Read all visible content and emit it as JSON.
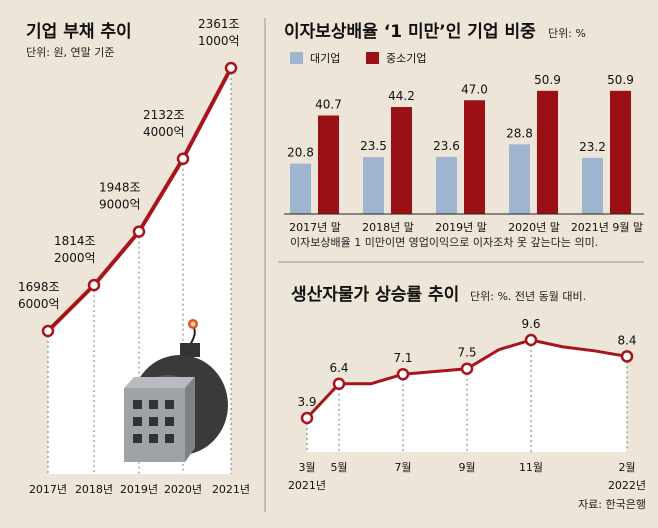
{
  "source": "자료: 한국은행",
  "colors": {
    "line": "#a8141c",
    "large": "#9fb4cf",
    "sme": "#9b1014",
    "bg": "#ece5d8"
  },
  "chart_data": [
    {
      "type": "line",
      "title": "기업 부채 추이",
      "subtitle": "단위: 원, 연말 기준",
      "categories": [
        "2017년",
        "2018년",
        "2019년",
        "2020년",
        "2021년"
      ],
      "values": [
        1698.6,
        1814.2,
        1948.9,
        2132.4,
        2361.1
      ],
      "labels": [
        {
          "l1": "1698조",
          "l2": "6000억"
        },
        {
          "l1": "1814조",
          "l2": "2000억"
        },
        {
          "l1": "1948조",
          "l2": "9000억"
        },
        {
          "l1": "2132조",
          "l2": "4000억"
        },
        {
          "l1": "2361조",
          "l2": "1000억"
        }
      ]
    },
    {
      "type": "bar",
      "title": "이자보상배율 ‘1 미만’인 기업 비중",
      "unit": "단위: %",
      "categories": [
        "2017년 말",
        "2018년 말",
        "2019년 말",
        "2020년 말",
        "2021년 9월 말"
      ],
      "series": [
        {
          "name": "대기업",
          "values": [
            20.8,
            23.5,
            23.6,
            28.8,
            23.2
          ],
          "labels": [
            "20.8",
            "23.5",
            "23.6",
            "28.8",
            "23.2"
          ]
        },
        {
          "name": "중소기업",
          "values": [
            40.7,
            44.2,
            47.0,
            50.9,
            50.9
          ],
          "labels": [
            "40.7",
            "44.2",
            "47.0",
            "50.9",
            "50.9"
          ]
        }
      ],
      "note": "이자보상배율 1 미만이면 영업이익으로 이자조차 못 갚는다는 의미."
    },
    {
      "type": "line",
      "title": "생산자물가 상승률 추이",
      "unit": "단위: %. 전년 동월 대비.",
      "points": [
        {
          "y": 3.9,
          "label": "3.9",
          "tick": "3월",
          "tick2": "2021년"
        },
        {
          "y": 6.4,
          "label": "6.4",
          "tick": "5월"
        },
        {
          "y": 6.4
        },
        {
          "y": 7.1,
          "label": "7.1",
          "tick": "7월"
        },
        {
          "y": 7.3
        },
        {
          "y": 7.5,
          "label": "7.5",
          "tick": "9월"
        },
        {
          "y": 8.9
        },
        {
          "y": 9.6,
          "label": "9.6",
          "tick": "11월"
        },
        {
          "y": 9.1
        },
        {
          "y": 8.8
        },
        {
          "y": 8.4,
          "label": "8.4",
          "tick": "2월",
          "tick2": "2022년"
        }
      ]
    }
  ]
}
